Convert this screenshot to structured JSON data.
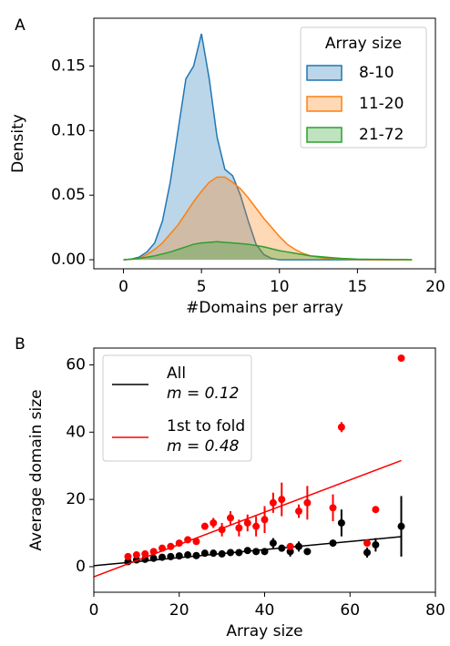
{
  "chart_data": [
    {
      "type": "area",
      "panel_label": "A",
      "xlabel": "#Domains per array",
      "ylabel": "Density",
      "legend_title": "Array size",
      "legend": "upper right",
      "x": [
        0,
        0.5,
        1,
        1.5,
        2,
        2.5,
        3,
        3.5,
        4,
        4.5,
        5,
        5.5,
        6,
        6.5,
        7,
        7.5,
        8,
        8.5,
        9,
        9.5,
        10,
        10.5,
        11,
        11.5,
        12,
        12.5,
        13,
        13.5,
        14,
        14.5,
        15,
        15.5,
        16,
        16.5,
        17,
        17.5,
        18,
        18.5
      ],
      "series": [
        {
          "name": "8-10",
          "color": "#1f77b4",
          "values": [
            0,
            0.0005,
            0.002,
            0.006,
            0.013,
            0.03,
            0.06,
            0.1,
            0.14,
            0.15,
            0.175,
            0.14,
            0.095,
            0.07,
            0.065,
            0.05,
            0.03,
            0.012,
            0.004,
            0.001,
            0,
            0,
            0,
            0,
            0,
            0,
            0,
            0,
            0,
            0,
            0,
            0,
            0,
            0,
            0,
            0,
            0,
            0
          ]
        },
        {
          "name": "11-20",
          "color": "#ff7f0e",
          "values": [
            0,
            0.0003,
            0.001,
            0.004,
            0.008,
            0.013,
            0.02,
            0.027,
            0.036,
            0.045,
            0.053,
            0.06,
            0.064,
            0.064,
            0.06,
            0.055,
            0.048,
            0.04,
            0.032,
            0.025,
            0.018,
            0.012,
            0.008,
            0.005,
            0.003,
            0.002,
            0.001,
            0.0007,
            0.0005,
            0.0003,
            0.0002,
            0.0001,
            0,
            0,
            0,
            0,
            0,
            0
          ]
        },
        {
          "name": "21-72",
          "color": "#2ca02c",
          "values": [
            0,
            0.0005,
            0.001,
            0.002,
            0.003,
            0.0045,
            0.006,
            0.008,
            0.01,
            0.012,
            0.013,
            0.0135,
            0.014,
            0.0135,
            0.013,
            0.0125,
            0.012,
            0.011,
            0.01,
            0.0085,
            0.007,
            0.006,
            0.005,
            0.004,
            0.003,
            0.0025,
            0.002,
            0.0015,
            0.001,
            0.0008,
            0.0005,
            0.0004,
            0.0003,
            0.0003,
            0.0002,
            0.0001,
            0.0001,
            0
          ]
        }
      ],
      "xlim": [
        -1.9,
        20
      ],
      "ylim": [
        -0.007,
        0.187
      ],
      "xticks": [
        0,
        5,
        10,
        15,
        20
      ],
      "yticks": [
        {
          "value": 0,
          "label": "0.00"
        },
        {
          "value": 0.05,
          "label": "0.05"
        },
        {
          "value": 0.1,
          "label": "0.10"
        },
        {
          "value": 0.15,
          "label": "0.15"
        }
      ]
    },
    {
      "type": "scatter",
      "panel_label": "B",
      "xlabel": "Array size",
      "ylabel": "Average domain size",
      "legend": "upper left",
      "series": [
        {
          "name": "All",
          "note": "m = 0.12",
          "color": "#000000",
          "x": [
            8,
            10,
            12,
            14,
            16,
            18,
            20,
            22,
            24,
            26,
            28,
            30,
            32,
            34,
            36,
            38,
            40,
            42,
            44,
            46,
            48,
            50,
            56,
            58,
            64,
            66,
            72
          ],
          "values": [
            1.5,
            2,
            2.2,
            2.5,
            2.8,
            3,
            3.2,
            3.5,
            3.3,
            4,
            4,
            3.8,
            4.2,
            4.2,
            4.8,
            4.5,
            4.5,
            7,
            5.5,
            4.5,
            6,
            4.5,
            7,
            13,
            4.2,
            6.5,
            12
          ],
          "errors": [
            0.4,
            0.4,
            0.4,
            0.4,
            0.4,
            0.4,
            0.4,
            0.4,
            0.4,
            0.5,
            0.5,
            0.5,
            0.5,
            0.5,
            0.6,
            0.6,
            0.6,
            1.5,
            1,
            1.5,
            1.5,
            0.6,
            1,
            4,
            1.5,
            2,
            9
          ],
          "fit": {
            "x": [
              0,
              72
            ],
            "values": [
              0.3,
              8.94
            ]
          }
        },
        {
          "name": "1st to fold",
          "note": "m = 0.48",
          "color": "#ff0000",
          "x": [
            8,
            10,
            12,
            14,
            16,
            18,
            20,
            22,
            24,
            26,
            28,
            30,
            32,
            34,
            36,
            38,
            40,
            42,
            44,
            46,
            48,
            50,
            56,
            58,
            64,
            66,
            72
          ],
          "values": [
            3,
            3.5,
            3.8,
            4.5,
            5.5,
            6,
            7,
            8,
            7.5,
            12,
            13,
            11,
            14.5,
            11.5,
            13,
            12,
            14,
            19,
            20,
            6,
            16.5,
            19,
            17.5,
            41.5,
            7,
            17,
            62
          ],
          "errors": [
            0.5,
            0.5,
            0.5,
            0.5,
            0.5,
            0.6,
            0.7,
            0.7,
            0.8,
            1,
            1.5,
            2,
            2,
            2.5,
            2.5,
            3,
            4,
            3,
            5,
            0.5,
            2,
            5,
            4,
            1.5,
            0.5,
            0.5,
            0.5
          ],
          "fit": {
            "x": [
              0,
              72
            ],
            "values": [
              -3,
              31.56
            ]
          }
        }
      ],
      "xlim": [
        0,
        80
      ],
      "ylim": [
        -7.6,
        65
      ],
      "xticks": [
        0,
        20,
        40,
        60,
        80
      ],
      "yticks": [
        0,
        20,
        40,
        60
      ]
    }
  ]
}
